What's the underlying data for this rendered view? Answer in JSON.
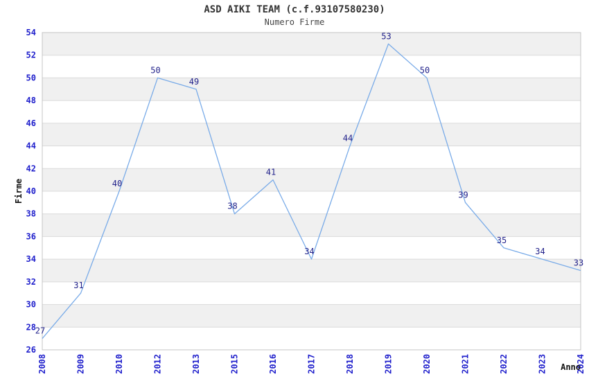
{
  "chart_data": {
    "type": "line",
    "title": "ASD AIKI TEAM (c.f.93107580230)",
    "subtitle": "Numero Firme",
    "xlabel": "Anno",
    "ylabel": "Firme",
    "categories": [
      "2008",
      "2009",
      "2010",
      "2012",
      "2013",
      "2015",
      "2016",
      "2017",
      "2018",
      "2019",
      "2020",
      "2021",
      "2022",
      "2023",
      "2024"
    ],
    "values": [
      27,
      31,
      40,
      50,
      49,
      38,
      41,
      34,
      44,
      53,
      50,
      39,
      35,
      34,
      33
    ],
    "ylim": [
      26,
      54
    ],
    "ytick_step": 2,
    "yticks": [
      26,
      28,
      30,
      32,
      34,
      36,
      38,
      40,
      42,
      44,
      46,
      48,
      50,
      52,
      54
    ],
    "grid": "horizontal-bands-alternating",
    "legend": "none",
    "data_labels_shown": true,
    "colors": {
      "line": "#79ABE8",
      "tick_label": "#2020CC",
      "data_label": "#22228B",
      "band_gray": "#F0F0F0",
      "band_white": "#FFFFFF",
      "gridline": "#DADADA",
      "plot_border": "#C4C4C4",
      "axis_title": "#111111",
      "title_text": "#333333"
    }
  }
}
